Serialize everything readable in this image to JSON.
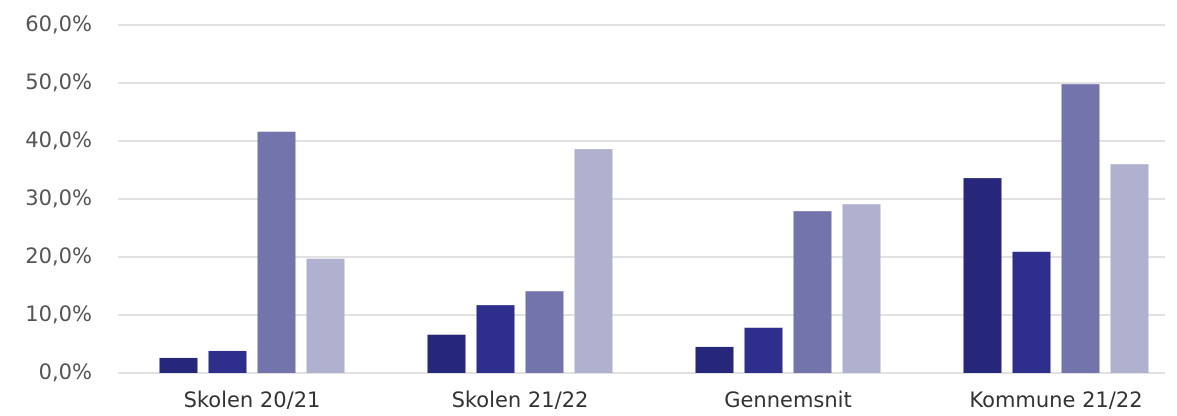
{
  "chart_data": {
    "type": "bar",
    "categories": [
      "Skolen 20/21",
      "Skolen 21/22",
      "Gennemsnit",
      "Kommune 21/22"
    ],
    "series": [
      {
        "color": "#26267a",
        "values": [
          2.6,
          6.6,
          4.5,
          33.6
        ]
      },
      {
        "color": "#2e2e8c",
        "values": [
          3.8,
          11.7,
          7.8,
          20.9
        ]
      },
      {
        "color": "#7474ad",
        "values": [
          41.6,
          14.1,
          27.9,
          49.8
        ]
      },
      {
        "color": "#b0b0cf",
        "values": [
          19.7,
          38.6,
          29.1,
          36.0
        ]
      }
    ],
    "ylim": [
      0,
      60
    ],
    "yticks": [
      {
        "value": 0,
        "label": "0,0%"
      },
      {
        "value": 10,
        "label": "10,0%"
      },
      {
        "value": 20,
        "label": "20,0%"
      },
      {
        "value": 30,
        "label": "30,0%"
      },
      {
        "value": 40,
        "label": "40,0%"
      },
      {
        "value": 50,
        "label": "50,0%"
      },
      {
        "value": 60,
        "label": "60,0%"
      }
    ],
    "grid": true
  }
}
